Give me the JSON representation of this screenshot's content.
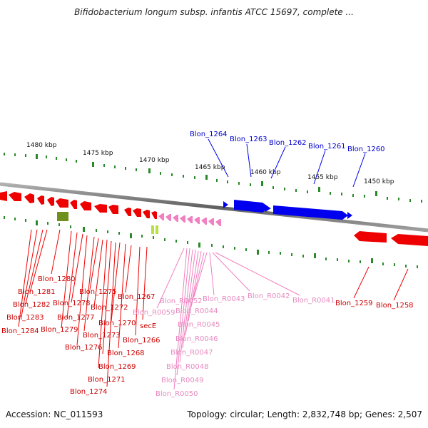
{
  "title": "Bifidobacterium longum subsp. infantis ATCC 15697, complete ...",
  "footer": {
    "accession": "Accession: NC_011593",
    "topology": "Topology: circular; Length: 2,832,748 bp; Genes: 2,507"
  },
  "colors": {
    "plus_strand": "#0000ee",
    "minus_strand": "#ee0000",
    "rna": "#f080c0",
    "olive": "#6f8f1f",
    "lime": "#b8e040",
    "tick": "#2a8a2a",
    "backbone": "#808080"
  },
  "scale": {
    "labels": [
      "1480 kbp",
      "1475 kbp",
      "1470 kbp",
      "1465 kbp",
      "1460 kbp",
      "1455 kbp",
      "1450 kbp"
    ]
  },
  "genes_plus": [
    "Blon_1264",
    "Blon_1263",
    "Blon_1262",
    "Blon_1261",
    "Blon_1260"
  ],
  "genes_minus_left": [
    "Blon_1280",
    "Blon_1281",
    "Blon_1282",
    "Blon_1283",
    "Blon_1284",
    "Blon_1278",
    "Blon_1277",
    "Blon_1279",
    "Blon_1276",
    "Blon_1275",
    "Blon_1273",
    "Blon_1272",
    "Blon_1270",
    "Blon_1268",
    "Blon_1269",
    "Blon_1271",
    "Blon_1274",
    "Blon_1267",
    "Blon_1266",
    "secE"
  ],
  "genes_rna": [
    "Blon_R0052",
    "Blon_R0043",
    "Blon_R0042",
    "Blon_R0041",
    "Blon_R0059",
    "Blon_R0044",
    "Blon_R0045",
    "Blon_R0046",
    "Blon_R0047",
    "Blon_R0048",
    "Blon_R0049",
    "Blon_R0050"
  ],
  "genes_minus_right": [
    "Blon_1259",
    "Blon_1258"
  ]
}
